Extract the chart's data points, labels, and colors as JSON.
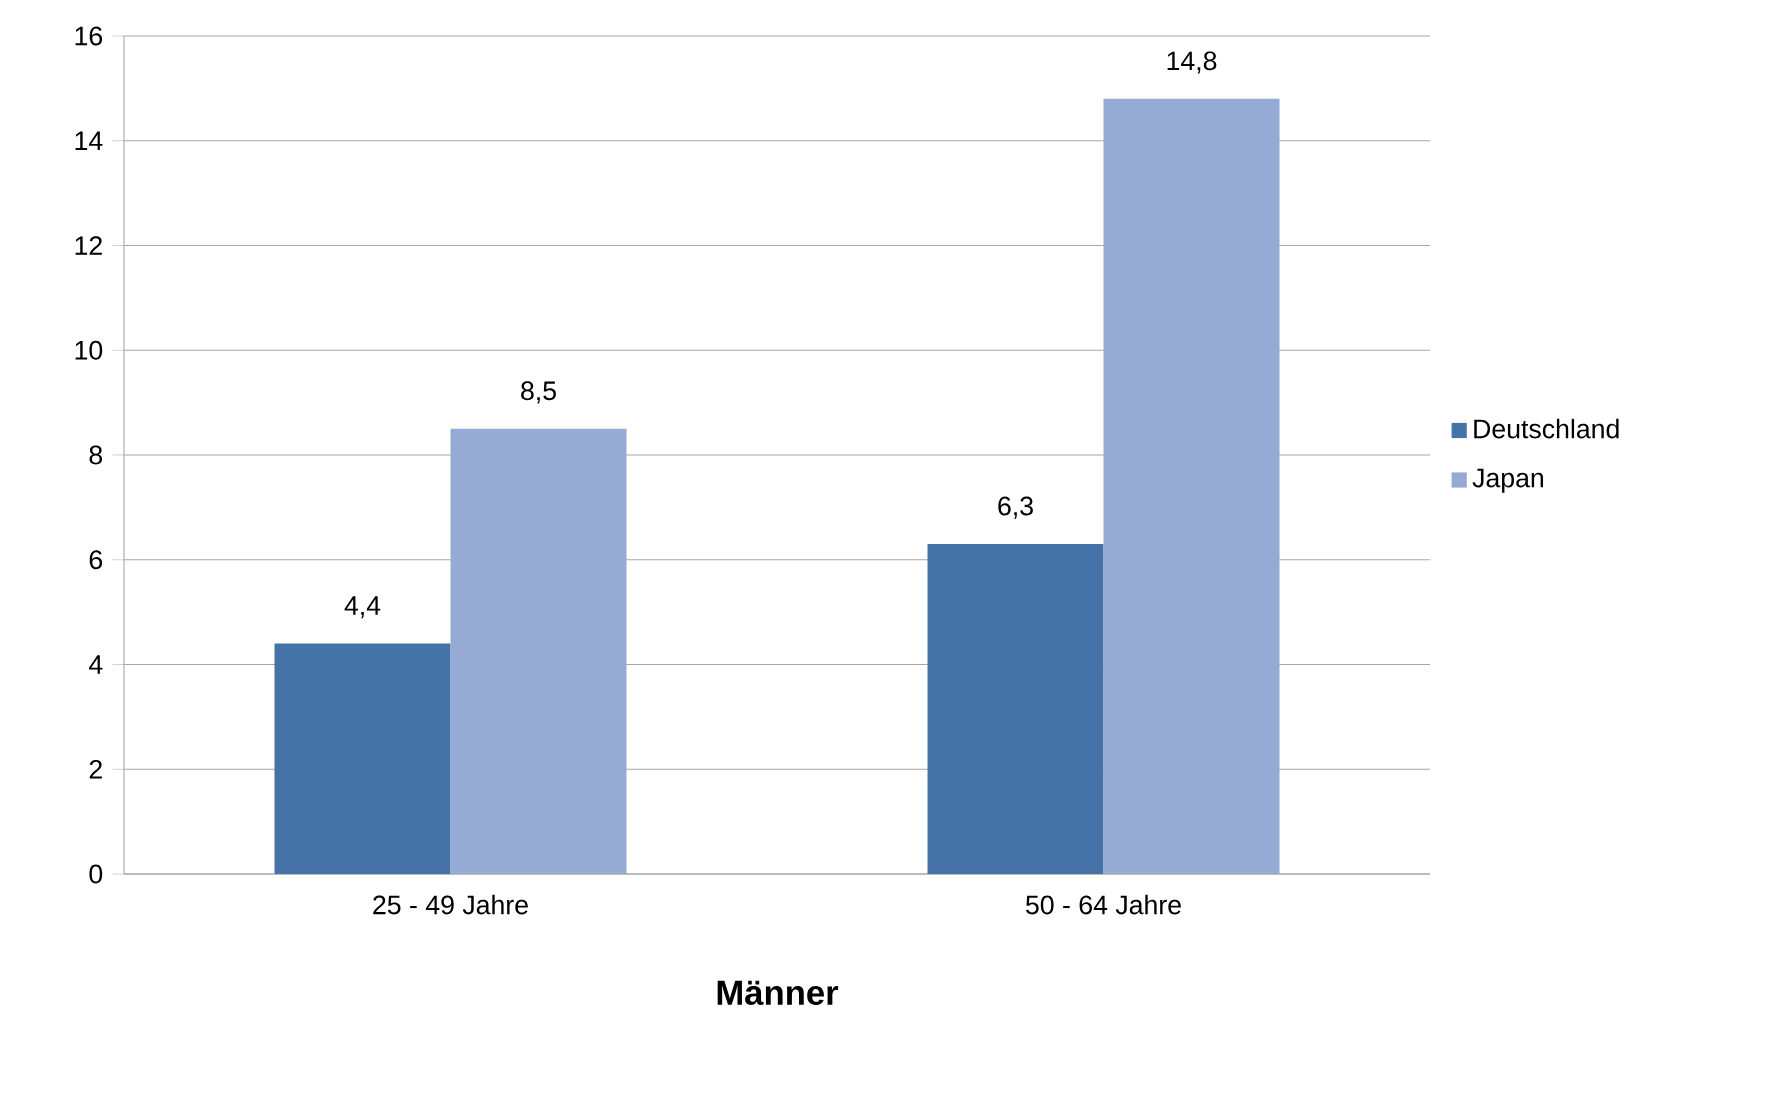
{
  "chart_data": {
    "type": "bar",
    "xlabel": "Männer",
    "categories": [
      "25 - 49 Jahre",
      "50 - 64 Jahre"
    ],
    "series": [
      {
        "name": "Deutschland",
        "color": "#4573a7",
        "values": [
          4.4,
          6.3
        ],
        "value_labels": [
          "4,4",
          "6,3"
        ]
      },
      {
        "name": "Japan",
        "color": "#95abd3",
        "values": [
          8.5,
          14.8
        ],
        "value_labels": [
          "8,5",
          "14,8"
        ]
      }
    ],
    "ylim": [
      0,
      16
    ],
    "yticks": [
      0,
      2,
      4,
      6,
      8,
      10,
      12,
      14,
      16
    ],
    "grid": "y",
    "legend": "right"
  }
}
